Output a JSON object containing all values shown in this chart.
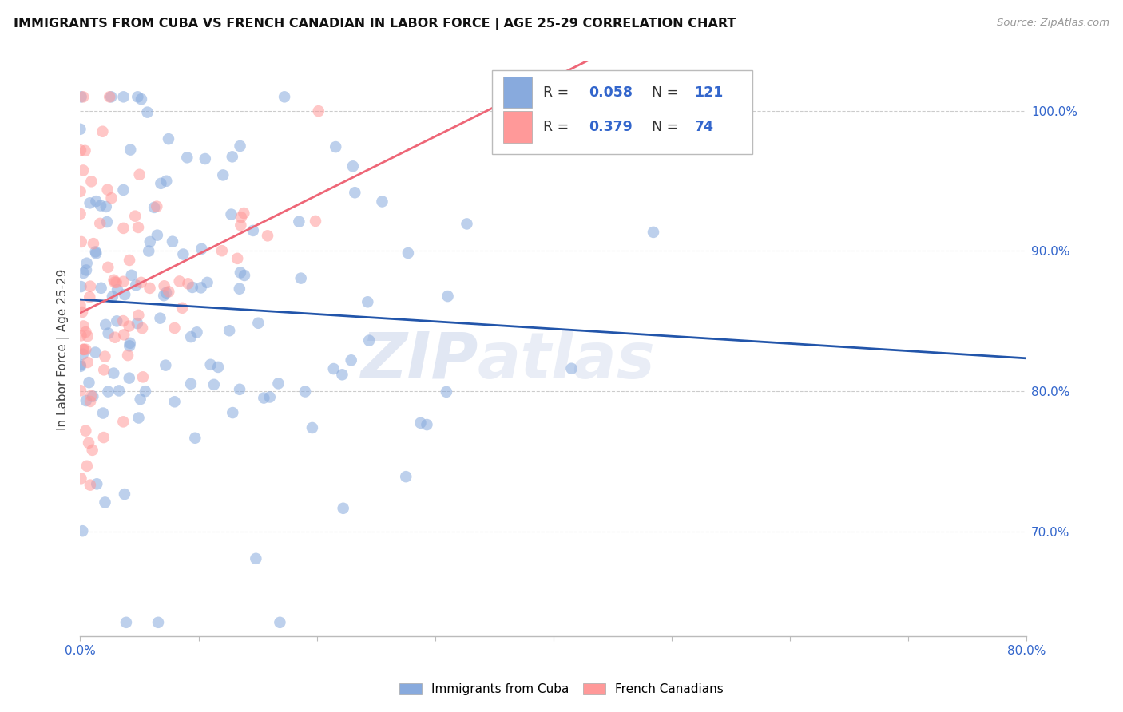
{
  "title": "IMMIGRANTS FROM CUBA VS FRENCH CANADIAN IN LABOR FORCE | AGE 25-29 CORRELATION CHART",
  "source": "Source: ZipAtlas.com",
  "ylabel": "In Labor Force | Age 25-29",
  "x_min": 0.0,
  "x_max": 0.8,
  "y_min": 0.625,
  "y_max": 1.035,
  "x_tick_positions": [
    0.0,
    0.1,
    0.2,
    0.3,
    0.4,
    0.5,
    0.6,
    0.7,
    0.8
  ],
  "x_tick_labels": [
    "0.0%",
    "",
    "",
    "",
    "",
    "",
    "",
    "",
    "80.0%"
  ],
  "y_tick_positions": [
    0.7,
    0.8,
    0.9,
    1.0
  ],
  "y_tick_labels": [
    "70.0%",
    "80.0%",
    "90.0%",
    "100.0%"
  ],
  "color_cuba": "#88AADD",
  "color_french": "#FF9999",
  "color_cuba_line": "#2255AA",
  "color_french_line": "#EE6677",
  "background_color": "#ffffff",
  "grid_color": "#cccccc",
  "watermark_left": "ZIP",
  "watermark_right": "atlas",
  "legend_cuba_R": "0.058",
  "legend_cuba_N": "121",
  "legend_french_R": "0.379",
  "legend_french_N": "74",
  "legend_label_color": "#333333",
  "legend_value_color": "#3366CC",
  "bottom_legend_cuba": "Immigrants from Cuba",
  "bottom_legend_french": "French Canadians"
}
